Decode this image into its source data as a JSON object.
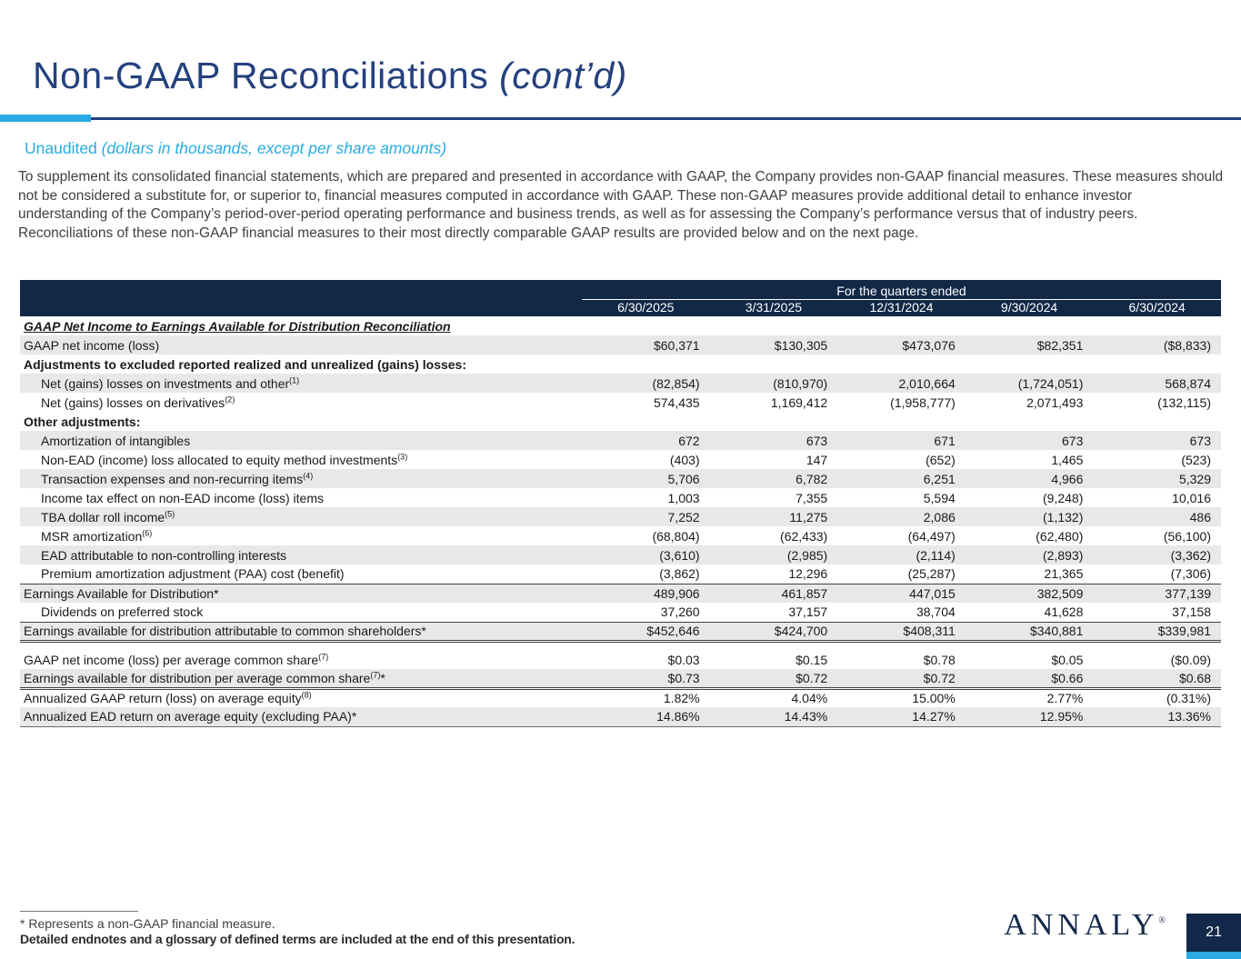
{
  "page": {
    "title": "Non-GAAP Reconciliations",
    "title_suffix": "(cont’d)",
    "page_number": "21",
    "logo_text": "ANNALY",
    "logo_reg": "®"
  },
  "colors": {
    "navy": "#13294B",
    "header-navy": "#112846",
    "title-blue": "#24417E",
    "cyan": "#29ABE2",
    "shade": "#E8E8E8"
  },
  "subtitle": {
    "prefix": "Unaudited ",
    "italic": "(dollars in thousands, except per share amounts)"
  },
  "intro_paragraph": "To supplement its consolidated financial statements, which are prepared and presented in accordance with GAAP, the Company provides non-GAAP financial measures. These measures should not be considered a substitute for, or superior to, financial measures computed in accordance with GAAP. These non-GAAP measures provide additional detail to enhance investor understanding of the Company’s period-over-period operating performance and business trends, as well as for assessing the Company’s performance versus that of industry peers. Reconciliations of these non-GAAP financial measures to their most directly comparable GAAP results are provided below and on the next page.",
  "table": {
    "header_group": "For the quarters ended",
    "columns": [
      "6/30/2025",
      "3/31/2025",
      "12/31/2024",
      "9/30/2024",
      "6/30/2024"
    ],
    "rows": [
      {
        "type": "section",
        "label": "GAAP Net Income to Earnings Available for Distribution Reconciliation",
        "shaded": false,
        "values": null
      },
      {
        "type": "item",
        "label": "GAAP net income (loss)",
        "indent": false,
        "shaded": true,
        "values": [
          "$60,371",
          "$130,305",
          "$473,076",
          "$82,351",
          "($8,833)"
        ]
      },
      {
        "type": "bold",
        "label": "Adjustments to excluded reported realized and unrealized (gains) losses:",
        "shaded": false,
        "values": null
      },
      {
        "type": "item",
        "label": "Net (gains) losses on investments and other",
        "sup": "(1)",
        "indent": true,
        "shaded": true,
        "values": [
          "(82,854)",
          "(810,970)",
          "2,010,664",
          "(1,724,051)",
          "568,874"
        ]
      },
      {
        "type": "item",
        "label": "Net (gains) losses on derivatives",
        "sup": "(2)",
        "indent": true,
        "shaded": false,
        "values": [
          "574,435",
          "1,169,412",
          "(1,958,777)",
          "2,071,493",
          "(132,115)"
        ]
      },
      {
        "type": "bold",
        "label": "Other adjustments:",
        "shaded": false,
        "values": null
      },
      {
        "type": "item",
        "label": "Amortization of intangibles",
        "indent": true,
        "shaded": true,
        "values": [
          "672",
          "673",
          "671",
          "673",
          "673"
        ]
      },
      {
        "type": "item",
        "label": "Non-EAD (income) loss allocated to equity method investments",
        "sup": "(3)",
        "indent": true,
        "shaded": false,
        "values": [
          "(403)",
          "147",
          "(652)",
          "1,465",
          "(523)"
        ]
      },
      {
        "type": "item",
        "label": "Transaction expenses and non-recurring items",
        "sup": "(4)",
        "indent": true,
        "shaded": true,
        "values": [
          "5,706",
          "6,782",
          "6,251",
          "4,966",
          "5,329"
        ]
      },
      {
        "type": "item",
        "label": "Income tax effect on non-EAD income (loss) items",
        "indent": true,
        "shaded": false,
        "values": [
          "1,003",
          "7,355",
          "5,594",
          "(9,248)",
          "10,016"
        ]
      },
      {
        "type": "item",
        "label": "TBA dollar roll income",
        "sup": "(5)",
        "indent": true,
        "shaded": true,
        "values": [
          "7,252",
          "11,275",
          "2,086",
          "(1,132)",
          "486"
        ]
      },
      {
        "type": "item",
        "label": "MSR amortization",
        "sup": "(6)",
        "indent": true,
        "shaded": false,
        "values": [
          "(68,804)",
          "(62,433)",
          "(64,497)",
          "(62,480)",
          "(56,100)"
        ]
      },
      {
        "type": "item",
        "label": "EAD attributable to non-controlling interests",
        "indent": true,
        "shaded": true,
        "values": [
          "(3,610)",
          "(2,985)",
          "(2,114)",
          "(2,893)",
          "(3,362)"
        ]
      },
      {
        "type": "item",
        "label": "Premium amortization adjustment (PAA) cost (benefit)",
        "indent": true,
        "shaded": false,
        "border_bottom": "thin",
        "values": [
          "(3,862)",
          "12,296",
          "(25,287)",
          "21,365",
          "(7,306)"
        ]
      },
      {
        "type": "item",
        "label": "Earnings Available for Distribution*",
        "indent": false,
        "shaded": true,
        "values": [
          "489,906",
          "461,857",
          "447,015",
          "382,509",
          "377,139"
        ]
      },
      {
        "type": "item",
        "label": "Dividends on preferred stock",
        "indent": true,
        "shaded": false,
        "border_bottom": "thin",
        "values": [
          "37,260",
          "37,157",
          "38,704",
          "41,628",
          "37,158"
        ]
      },
      {
        "type": "item",
        "label": "Earnings available for distribution attributable to common shareholders*",
        "indent": false,
        "shaded": true,
        "border_bottom": "double",
        "values": [
          "$452,646",
          "$424,700",
          "$408,311",
          "$340,881",
          "$339,981"
        ]
      },
      {
        "type": "spacer"
      },
      {
        "type": "item",
        "label": "GAAP net income (loss) per average common share",
        "sup": "(7)",
        "indent": false,
        "shaded": false,
        "values": [
          "$0.03",
          "$0.15",
          "$0.78",
          "$0.05",
          "($0.09)"
        ]
      },
      {
        "type": "item",
        "label": "Earnings available for distribution per average common share",
        "sup": "(7)",
        "star": "*",
        "indent": false,
        "shaded": true,
        "border_bottom": "double",
        "values": [
          "$0.73",
          "$0.72",
          "$0.72",
          "$0.66",
          "$0.68"
        ]
      },
      {
        "type": "item",
        "label": "Annualized GAAP return (loss) on average equity",
        "sup": "(8)",
        "indent": false,
        "shaded": false,
        "values": [
          "1.82%",
          "4.04%",
          "15.00%",
          "2.77%",
          "(0.31%)"
        ]
      },
      {
        "type": "item",
        "label": "Annualized EAD return on average equity (excluding PAA)*",
        "indent": false,
        "shaded": true,
        "border_bottom": "end",
        "values": [
          "14.86%",
          "14.43%",
          "14.27%",
          "12.95%",
          "13.36%"
        ]
      }
    ]
  },
  "footer": {
    "note1": "* Represents a non-GAAP financial measure.",
    "note2": "Detailed endnotes and a glossary of defined terms are included at the end of this presentation."
  }
}
